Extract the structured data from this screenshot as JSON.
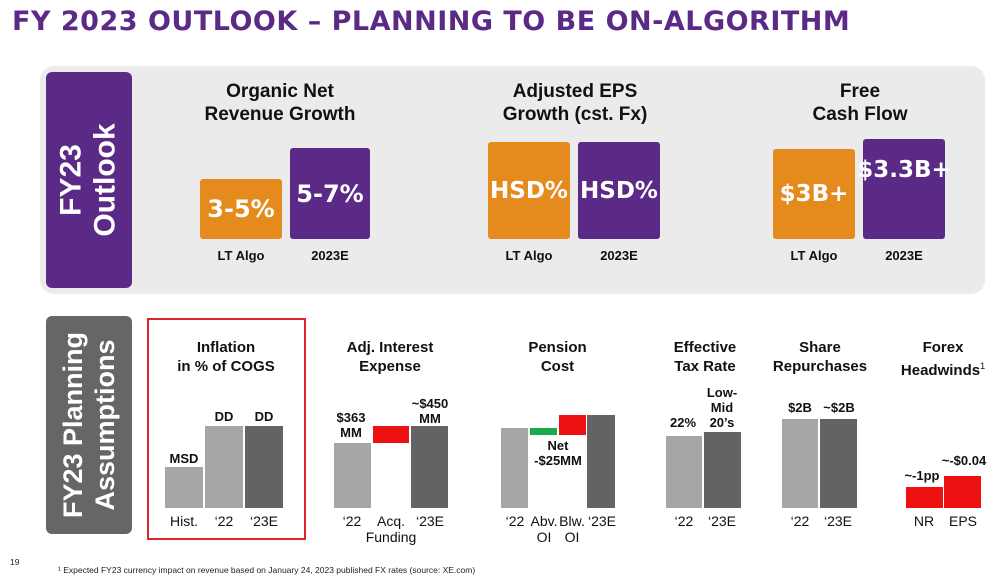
{
  "title": "FY 2023 OUTLOOK – PLANNING TO BE ON-ALGORITHM",
  "outlook": {
    "side_label_1": "FY23",
    "side_label_2": "Outlook",
    "metrics": [
      {
        "header_1": "Organic Net",
        "header_2": "Revenue Growth",
        "lt_algo": "3-5%",
        "fy23e": "5-7%",
        "lt_label": "LT Algo",
        "fy_label": "2023E"
      },
      {
        "header_1": "Adjusted EPS",
        "header_2": "Growth (cst. Fx)",
        "lt_algo": "HSD%",
        "fy23e": "HSD%",
        "lt_label": "LT Algo",
        "fy_label": "2023E"
      },
      {
        "header_1": "Free",
        "header_2": "Cash Flow",
        "lt_algo": "$3B+",
        "fy23e": "$3.3B+",
        "lt_label": "LT Algo",
        "fy_label": "2023E"
      }
    ],
    "colors": {
      "lt_algo": "#e58a1c",
      "fy23e": "#5b2a86"
    }
  },
  "planning": {
    "side_label_1": "FY23 Planning",
    "side_label_2": "Assumptions",
    "inflation": {
      "header_1": "Inflation",
      "header_2": "in % of COGS",
      "labels": [
        "MSD",
        "DD",
        "DD"
      ],
      "x": [
        "Hist.",
        "‘22",
        "‘23E"
      ]
    },
    "interest": {
      "header_1": "Adj. Interest",
      "header_2": "Expense",
      "start_1": "$363",
      "start_2": "MM",
      "end_1": "~$450",
      "end_2": "MM",
      "x": [
        "‘22",
        "Acq.",
        "Funding",
        "‘23E"
      ]
    },
    "pension": {
      "header_1": "Pension",
      "header_2": "Cost",
      "net_1": "Net",
      "net_2": "-$25MM",
      "x": [
        "‘22",
        "Abv.",
        "OI",
        "Blw.",
        "OI",
        "‘23E"
      ]
    },
    "tax": {
      "header_1": "Effective",
      "header_2": "Tax Rate",
      "v22": "22%",
      "v23_1": "Low-",
      "v23_2": "Mid",
      "v23_3": "20’s",
      "x": [
        "‘22",
        "‘23E"
      ]
    },
    "repurchase": {
      "header_1": "Share",
      "header_2": "Repurchases",
      "v22": "$2B",
      "v23": "~$2B",
      "x": [
        "‘22",
        "‘23E"
      ]
    },
    "forex": {
      "header_1": "Forex",
      "header_2": "Headwinds",
      "sup": "1",
      "nr": "~-1pp",
      "eps": "~-$0.04",
      "x": [
        "NR",
        "EPS"
      ]
    }
  },
  "page_number": "19",
  "footnote": "¹ Expected FY23 currency impact on revenue based on January 24, 2023 published FX rates (source: XE.com)"
}
